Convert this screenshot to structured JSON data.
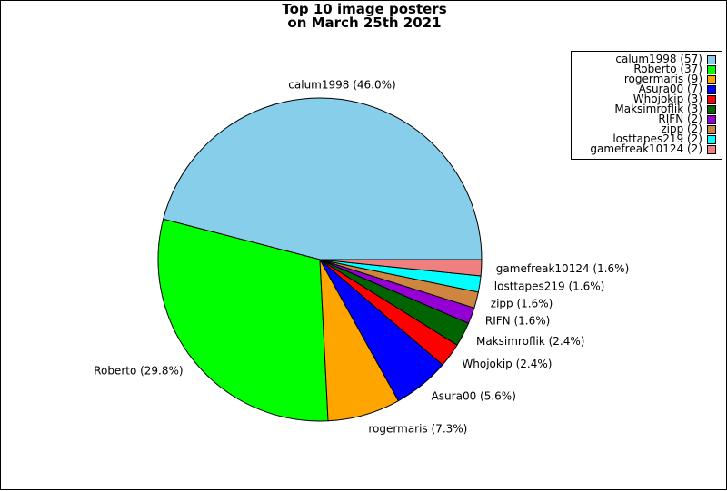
{
  "title_line1": "Top 10 image posters",
  "title_line2": "on March 25th 2021",
  "chart_data": {
    "type": "pie",
    "title": "Top 10 image posters on March 25th 2021",
    "slices": [
      {
        "name": "calum1998",
        "value": 57,
        "percent_label": "calum1998 (46.0%)",
        "legend_label": "calum1998 (57)",
        "color": "#87ceeb"
      },
      {
        "name": "Roberto",
        "value": 37,
        "percent_label": "Roberto (29.8%)",
        "legend_label": "Roberto (37)",
        "color": "#00ff00"
      },
      {
        "name": "rogermaris",
        "value": 9,
        "percent_label": "rogermaris (7.3%)",
        "legend_label": "rogermaris (9)",
        "color": "#ffa500"
      },
      {
        "name": "Asura00",
        "value": 7,
        "percent_label": "Asura00 (5.6%)",
        "legend_label": "Asura00 (7)",
        "color": "#0000ff"
      },
      {
        "name": "Whojokip",
        "value": 3,
        "percent_label": "Whojokip (2.4%)",
        "legend_label": "Whojokip (3)",
        "color": "#ff0000"
      },
      {
        "name": "Maksimroflik",
        "value": 3,
        "percent_label": "Maksimroflik (2.4%)",
        "legend_label": "Maksimroflik (3)",
        "color": "#006400"
      },
      {
        "name": "RIFN",
        "value": 2,
        "percent_label": "RIFN (1.6%)",
        "legend_label": "RIFN (2)",
        "color": "#9400d3"
      },
      {
        "name": "zipp",
        "value": 2,
        "percent_label": "zipp (1.6%)",
        "legend_label": "zipp (2)",
        "color": "#cd853f"
      },
      {
        "name": "losttapes219",
        "value": 2,
        "percent_label": "losttapes219 (1.6%)",
        "legend_label": "losttapes219 (2)",
        "color": "#00ffff"
      },
      {
        "name": "gamefreak10124",
        "value": 2,
        "percent_label": "gamefreak10124 (1.6%)",
        "legend_label": "gamefreak10124 (2)",
        "color": "#f08080"
      }
    ],
    "start_angle_deg": 0,
    "direction": "counterclockwise",
    "legend_position": "top-right"
  }
}
